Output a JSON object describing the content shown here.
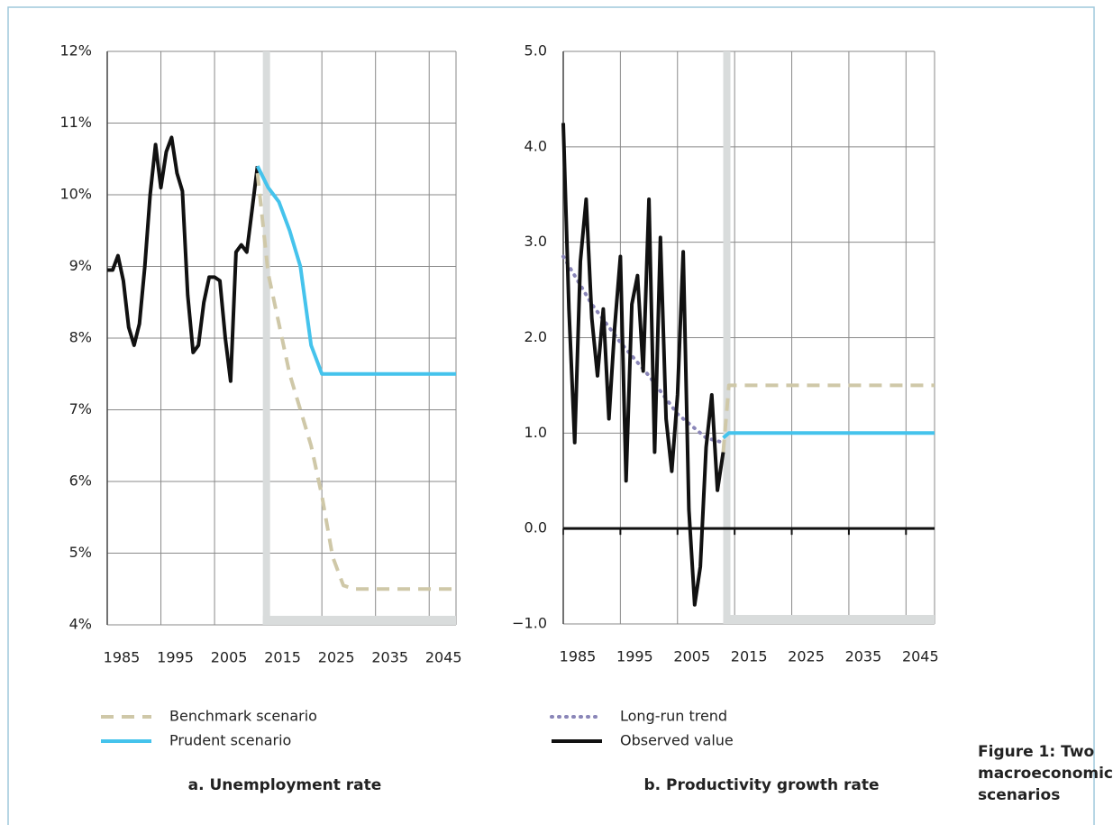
{
  "figure_title": "Figure 1: Two macroeconomic scenarios",
  "chart_data": [
    {
      "type": "line",
      "title": "a. Unemployment rate",
      "xlim": [
        1985,
        2050
      ],
      "xticks": [
        1985,
        1995,
        2005,
        2015,
        2025,
        2035,
        2045
      ],
      "ylim": [
        4,
        12
      ],
      "yticks": [
        {
          "value": 4,
          "label": "4%"
        },
        {
          "value": 5,
          "label": "5%"
        },
        {
          "value": 6,
          "label": "6%"
        },
        {
          "value": 7,
          "label": "7%"
        },
        {
          "value": 8,
          "label": "8%"
        },
        {
          "value": 9,
          "label": "9%"
        },
        {
          "value": 10,
          "label": "10%"
        },
        {
          "value": 11,
          "label": "11%"
        },
        {
          "value": 12,
          "label": "12%"
        }
      ],
      "grid": true,
      "forecast_start": 2014,
      "series": [
        {
          "color": "#111111",
          "style": "solid",
          "x": [
            1985,
            1986,
            1987,
            1988,
            1989,
            1990,
            1991,
            1992,
            1993,
            1994,
            1995,
            1996,
            1997,
            1998,
            1999,
            2000,
            2001,
            2002,
            2003,
            2004,
            2005,
            2006,
            2007,
            2008,
            2009,
            2010,
            2011,
            2012,
            2013
          ],
          "values": [
            8.95,
            8.95,
            9.15,
            8.8,
            8.15,
            7.9,
            8.2,
            9.0,
            10.0,
            10.7,
            10.1,
            10.6,
            10.8,
            10.3,
            10.05,
            8.6,
            7.8,
            7.9,
            8.5,
            8.85,
            8.85,
            8.8,
            8.0,
            7.4,
            9.2,
            9.3,
            9.2,
            9.8,
            10.4
          ]
        },
        {
          "name": "Benchmark scenario",
          "color": "#cfc8a8",
          "style": "dashed",
          "x": [
            2013,
            2015,
            2017,
            2019,
            2021,
            2023,
            2025,
            2027,
            2029,
            2031,
            2050
          ],
          "values": [
            10.3,
            8.9,
            8.2,
            7.5,
            7.0,
            6.5,
            5.8,
            4.95,
            4.55,
            4.5,
            4.5
          ]
        },
        {
          "name": "Prudent scenario",
          "color": "#45c3ec",
          "style": "solid",
          "x": [
            2013,
            2015,
            2016,
            2017,
            2019,
            2021,
            2023,
            2024,
            2025,
            2050
          ],
          "values": [
            10.4,
            10.1,
            10.0,
            9.9,
            9.5,
            9.0,
            7.9,
            7.7,
            7.5,
            7.5
          ]
        }
      ]
    },
    {
      "type": "line",
      "title": "b. Productivity growth rate",
      "xlim": [
        1985,
        2050
      ],
      "xticks": [
        1985,
        1995,
        2005,
        2015,
        2025,
        2035,
        2045
      ],
      "ylim": [
        -1,
        5
      ],
      "yticks": [
        {
          "value": -1,
          "label": "−1.0"
        },
        {
          "value": 0,
          "label": "0.0"
        },
        {
          "value": 1,
          "label": "1.0"
        },
        {
          "value": 2,
          "label": "2.0"
        },
        {
          "value": 3,
          "label": "3.0"
        },
        {
          "value": 4,
          "label": "4.0"
        },
        {
          "value": 5,
          "label": "5.0"
        }
      ],
      "grid": true,
      "forecast_start": 2013,
      "zero_line": true,
      "series": [
        {
          "name": "Long-run trend",
          "color": "#8a86b8",
          "style": "dotted",
          "x": [
            1985,
            1990,
            1995,
            2000,
            2005,
            2010,
            2013
          ],
          "values": [
            2.85,
            2.35,
            1.95,
            1.6,
            1.2,
            0.95,
            0.9
          ]
        },
        {
          "name": "Observed value",
          "color": "#111111",
          "style": "solid",
          "x": [
            1985,
            1986,
            1987,
            1988,
            1989,
            1990,
            1991,
            1992,
            1993,
            1994,
            1995,
            1996,
            1997,
            1998,
            1999,
            2000,
            2001,
            2002,
            2003,
            2004,
            2005,
            2006,
            2007,
            2008,
            2009,
            2010,
            2011,
            2012,
            2013
          ],
          "values": [
            4.25,
            2.3,
            0.9,
            2.8,
            3.45,
            2.2,
            1.6,
            2.3,
            1.15,
            2.1,
            2.85,
            0.5,
            2.35,
            2.65,
            1.65,
            3.45,
            0.8,
            3.05,
            1.15,
            0.6,
            1.4,
            2.9,
            0.2,
            -0.8,
            -0.4,
            0.85,
            1.4,
            0.4,
            0.8
          ]
        },
        {
          "color": "#cfc8a8",
          "style": "dashed",
          "x": [
            2013,
            2014,
            2050
          ],
          "values": [
            0.8,
            1.5,
            1.5
          ]
        },
        {
          "color": "#45c3ec",
          "style": "solid",
          "x": [
            2013,
            2014,
            2050
          ],
          "values": [
            0.95,
            1.0,
            1.0
          ]
        }
      ]
    }
  ]
}
